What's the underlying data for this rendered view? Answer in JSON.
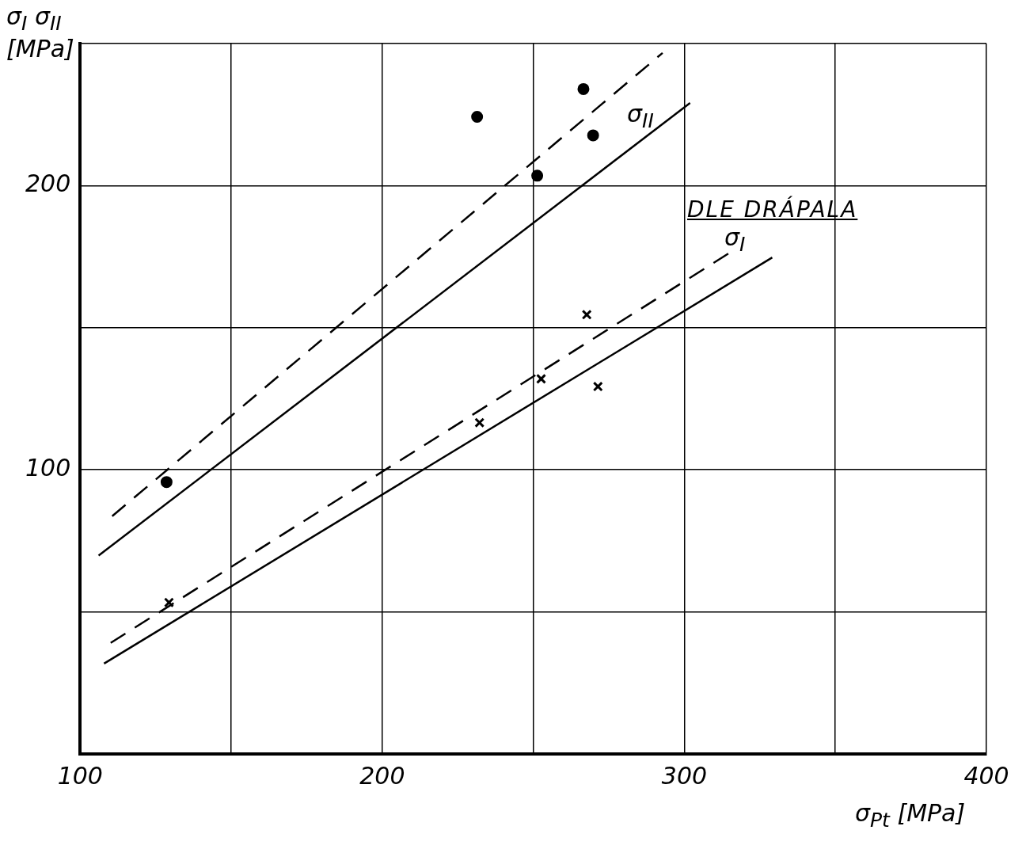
{
  "chart_data": {
    "type": "scatter",
    "xlabel": "σ$_{Pt}$ [MPa]",
    "ylabel": "σ$_{I}$ σ$_{II}$ [MPa]",
    "xlim": [
      100,
      400
    ],
    "ylim": [
      0,
      250
    ],
    "xticks": [
      100,
      {
        "value": 150,
        "label": null
      },
      200,
      {
        "value": 250,
        "label": null
      },
      300,
      {
        "value": 350,
        "label": null
      },
      400
    ],
    "yticks": [
      {
        "value": 0,
        "label": null
      },
      {
        "value": 50,
        "label": null
      },
      100,
      {
        "value": 150,
        "label": null
      },
      200,
      {
        "value": 250,
        "label": null
      }
    ],
    "grid": true,
    "legend": false,
    "series": [
      {
        "type": "scatter",
        "marker": "circle",
        "color": "#000000",
        "x": [
          128.6,
          231.4,
          251.3,
          266.6,
          269.8
        ],
        "values": [
          95.7,
          224.2,
          203.5,
          234,
          217.7
        ]
      },
      {
        "type": "scatter",
        "marker": "cross",
        "color": "#000000",
        "x": [
          129.4,
          232.2,
          252.6,
          267.7,
          271.4
        ],
        "values": [
          53.3,
          116.6,
          132,
          154.6,
          129.3
        ]
      },
      {
        "type": "line",
        "line_style": "dashed",
        "color": "#000000",
        "x": [
          110.6,
          292.8
        ],
        "values": [
          83.7,
          246.7
        ]
      },
      {
        "type": "line",
        "line_style": "solid",
        "color": "#000000",
        "x": [
          106.1,
          301.9
        ],
        "values": [
          69.8,
          229.1
        ]
      },
      {
        "type": "line",
        "line_style": "dashed",
        "color": "#000000",
        "x": [
          110.1,
          314.6
        ],
        "values": [
          39.1,
          176.1
        ]
      },
      {
        "type": "line",
        "line_style": "solid",
        "color": "#000000",
        "x": [
          107.9,
          329.1
        ],
        "values": [
          31.8,
          174.7
        ]
      }
    ],
    "annotations": [
      "σ$_{II}$",
      "σ$_{I}$",
      "DLE DRÁPALA"
    ]
  }
}
